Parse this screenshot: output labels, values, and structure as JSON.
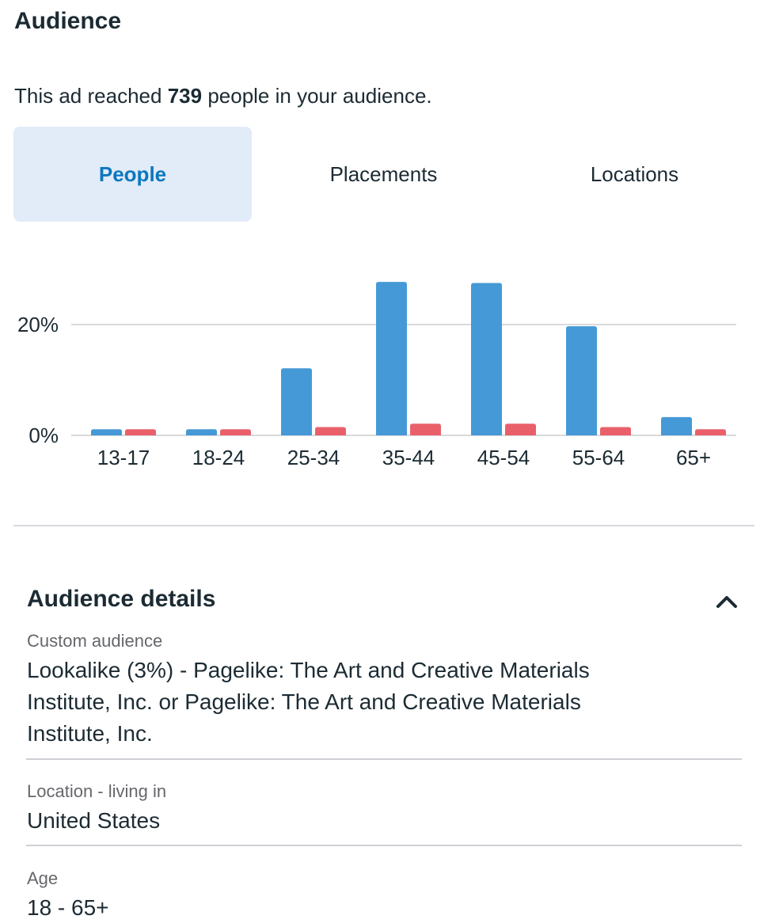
{
  "header": {
    "title": "Audience",
    "reach_prefix": "This ad reached",
    "reach_count": "739",
    "reach_suffix": "people in your audience."
  },
  "tabs": [
    {
      "label": "People",
      "active": true
    },
    {
      "label": "Placements",
      "active": false
    },
    {
      "label": "Locations",
      "active": false
    }
  ],
  "chart_data": {
    "type": "bar",
    "categories": [
      "13-17",
      "18-24",
      "25-34",
      "35-44",
      "45-54",
      "55-64",
      "65+"
    ],
    "series": [
      {
        "color": "#4599d6",
        "values": [
          1.1,
          1.1,
          12.1,
          27.7,
          27.5,
          19.7,
          3.3
        ]
      },
      {
        "color": "#e9606b",
        "values": [
          1.1,
          1.1,
          1.5,
          2.1,
          2.1,
          1.5,
          1.1
        ]
      }
    ],
    "yticks": [
      "0%",
      "20%"
    ],
    "ytick_values": [
      0,
      20
    ],
    "ylim": [
      0,
      30
    ],
    "grid": true,
    "gridline_color": "#d9dadc"
  },
  "details": {
    "title": "Audience details",
    "custom_audience_label": "Custom audience",
    "custom_audience_line1": "Lookalike (3%) - Pagelike: The Art and Creative Materials",
    "custom_audience_line2": "Institute, Inc. or Pagelike: The Art and Creative Materials",
    "custom_audience_line3": "Institute, Inc.",
    "location_label": "Location - living in",
    "location_value": "United States",
    "age_label": "Age",
    "age_value": "18 - 65+"
  }
}
